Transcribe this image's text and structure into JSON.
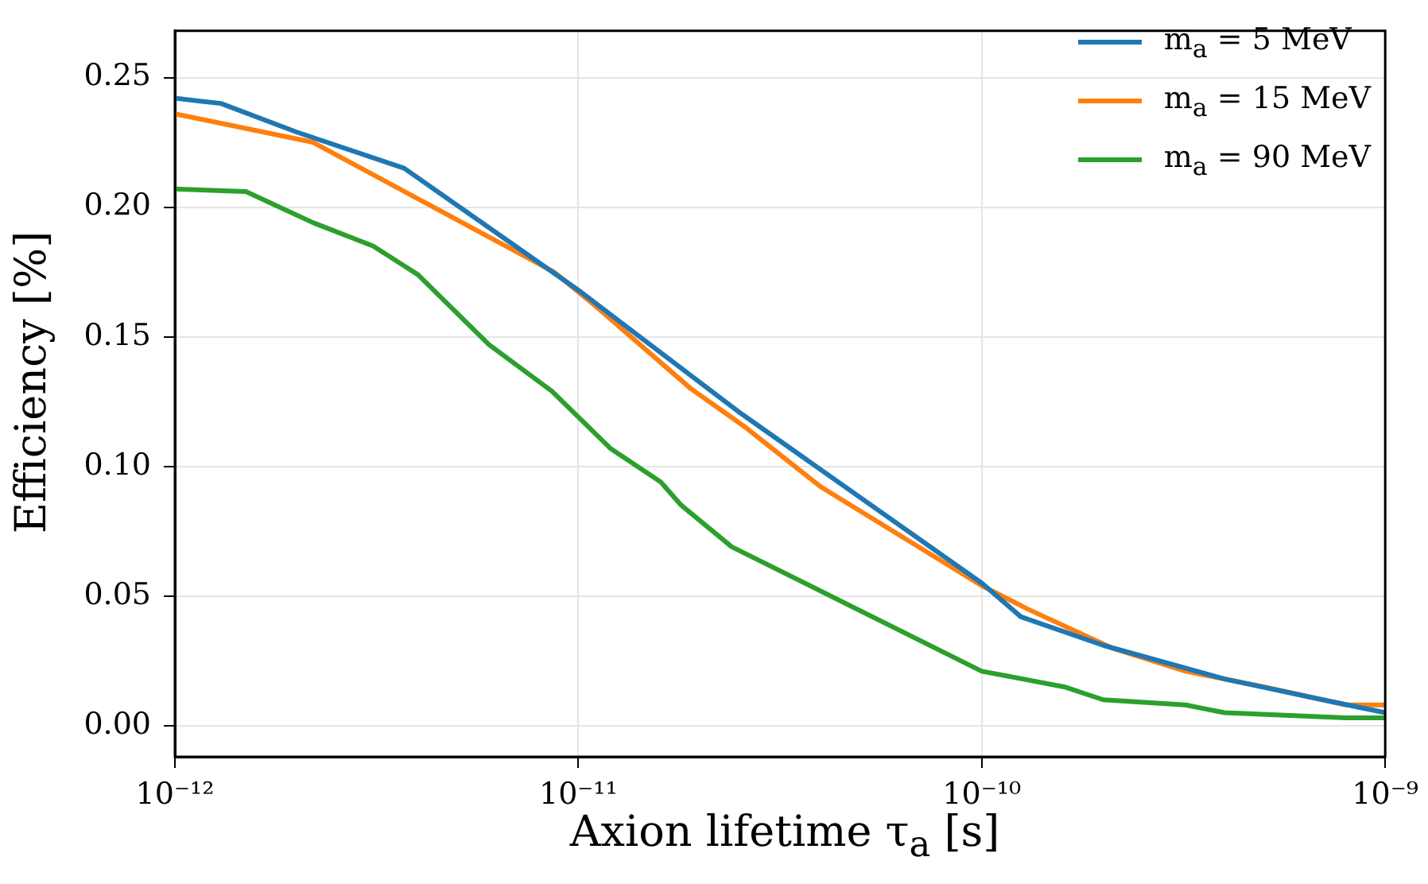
{
  "chart_data": {
    "type": "line",
    "xlabel": "Axion lifetime τ$_{a}$ [s]",
    "ylabel": "Efficiency [%]",
    "log": "x",
    "grid": true,
    "legend": "top right",
    "marker": "none",
    "line_style": "solid",
    "xlim": [
      1e-12,
      1e-09
    ],
    "xticks": [
      {
        "value": 1e-12,
        "label": "10⁻¹²"
      },
      {
        "value": 1e-11,
        "label": "10⁻¹¹"
      },
      {
        "value": 1e-10,
        "label": "10⁻¹⁰"
      },
      {
        "value": 1e-09,
        "label": "10⁻⁹"
      }
    ],
    "ylim": [
      -0.012,
      0.268
    ],
    "yticks": [
      {
        "value": 0,
        "label": "0.00"
      },
      {
        "value": 0.05,
        "label": "0.05"
      },
      {
        "value": 0.1,
        "label": "0.10"
      },
      {
        "value": 0.15,
        "label": "0.15"
      },
      {
        "value": 0.2,
        "label": "0.20"
      },
      {
        "value": 0.25,
        "label": "0.25"
      }
    ],
    "series": [
      {
        "name": "m$_{a}$ = 5 MeV",
        "color": "#1f77b4",
        "x": [
          1e-12,
          1.3e-12,
          2e-12,
          3.7e-12,
          1e-11,
          2.5e-11,
          1e-10,
          1.25e-10,
          2e-10,
          4e-10,
          7e-10,
          1e-09
        ],
        "values": [
          0.242,
          0.24,
          0.229,
          0.215,
          0.168,
          0.121,
          0.055,
          0.042,
          0.031,
          0.018,
          0.01,
          0.005
        ]
      },
      {
        "name": "m$_{a}$ = 15 MeV",
        "color": "#ff7f0e",
        "x": [
          1e-12,
          2.2e-12,
          8.7e-12,
          1.1e-11,
          1.9e-11,
          2.6e-11,
          4e-11,
          1e-10,
          1.3e-10,
          2.1e-10,
          3.2e-10,
          5e-10,
          8e-10,
          1e-09
        ],
        "values": [
          0.236,
          0.225,
          0.175,
          0.162,
          0.13,
          0.115,
          0.092,
          0.054,
          0.045,
          0.03,
          0.021,
          0.015,
          0.008,
          0.008
        ]
      },
      {
        "name": "m$_{a}$ = 90 MeV",
        "color": "#2ca02c",
        "x": [
          1e-12,
          1.5e-12,
          2.2e-12,
          3.1e-12,
          4e-12,
          6e-12,
          8.6e-12,
          1.2e-11,
          1.6e-11,
          1.8e-11,
          2.4e-11,
          1e-10,
          1.6e-10,
          2e-10,
          3.2e-10,
          4e-10,
          8e-10,
          1e-09
        ],
        "values": [
          0.207,
          0.206,
          0.194,
          0.185,
          0.174,
          0.147,
          0.129,
          0.107,
          0.094,
          0.085,
          0.069,
          0.021,
          0.015,
          0.01,
          0.008,
          0.005,
          0.003,
          0.003
        ]
      }
    ]
  }
}
